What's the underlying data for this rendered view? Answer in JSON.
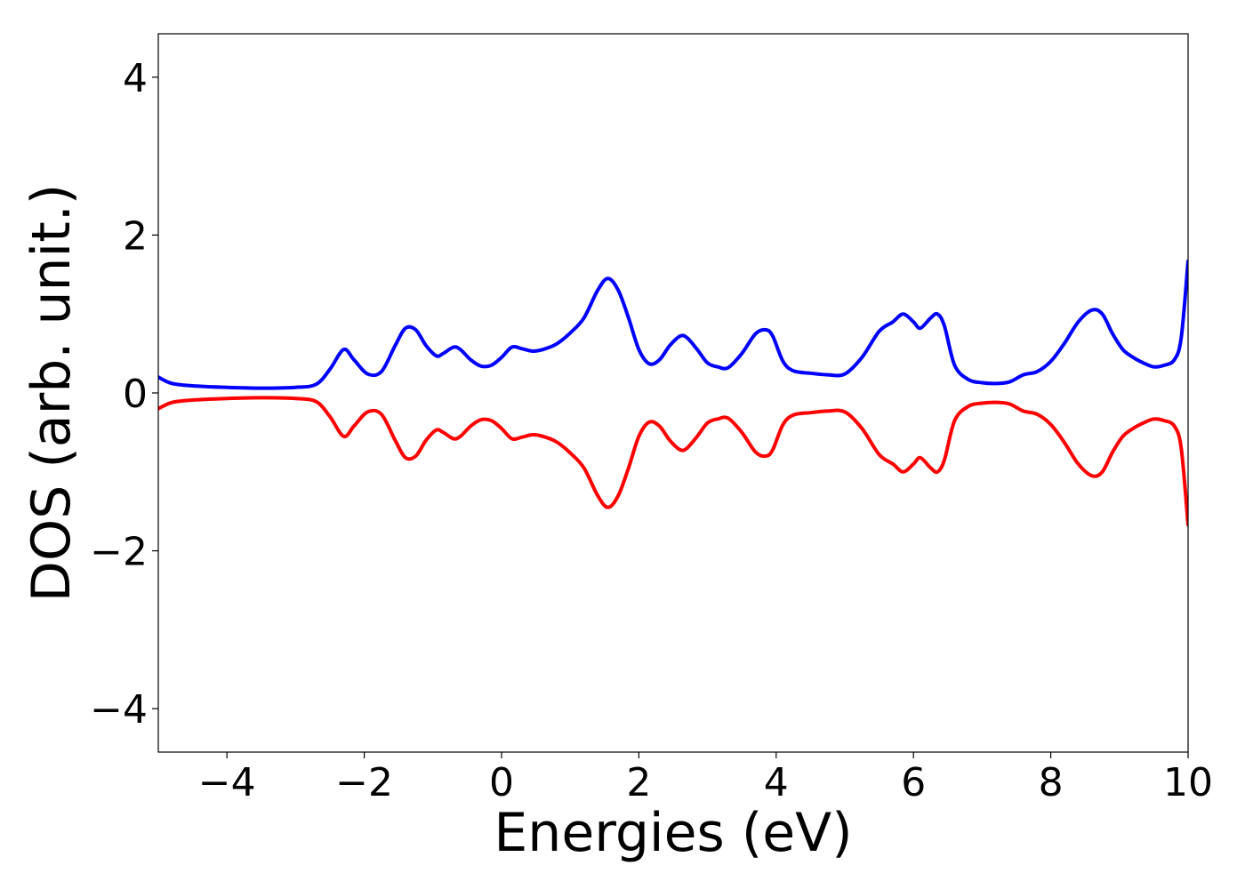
{
  "chart_data": {
    "type": "line",
    "title": "",
    "xlabel": "Energies (eV)",
    "ylabel": "DOS (arb. unit.)",
    "xlim": [
      -5,
      10
    ],
    "ylim": [
      -4.55,
      4.55
    ],
    "xticks": [
      -4,
      -2,
      0,
      2,
      4,
      6,
      8,
      10
    ],
    "yticks": [
      -4,
      -2,
      0,
      2,
      4
    ],
    "xtick_labels": [
      "−4",
      "−2",
      "0",
      "2",
      "4",
      "6",
      "8",
      "10"
    ],
    "ytick_labels": [
      "−4",
      "−2",
      "0",
      "2",
      "4"
    ],
    "grid": false,
    "legend": "none",
    "series": [
      {
        "color": "#0000ff",
        "x": [
          -5.0,
          -4.8,
          -4.5,
          -4.0,
          -3.5,
          -3.0,
          -2.7,
          -2.5,
          -2.3,
          -2.15,
          -1.95,
          -1.75,
          -1.55,
          -1.4,
          -1.25,
          -1.1,
          -0.95,
          -0.85,
          -0.7,
          -0.6,
          -0.45,
          -0.3,
          -0.15,
          0.0,
          0.15,
          0.3,
          0.45,
          0.6,
          0.8,
          1.0,
          1.2,
          1.4,
          1.55,
          1.7,
          1.85,
          2.0,
          2.15,
          2.3,
          2.45,
          2.6,
          2.7,
          2.85,
          3.0,
          3.15,
          3.3,
          3.5,
          3.7,
          3.85,
          3.95,
          4.1,
          4.25,
          4.5,
          4.75,
          5.0,
          5.25,
          5.5,
          5.7,
          5.85,
          6.0,
          6.1,
          6.25,
          6.35,
          6.45,
          6.6,
          6.8,
          7.0,
          7.2,
          7.4,
          7.6,
          7.8,
          8.0,
          8.2,
          8.4,
          8.6,
          8.75,
          8.9,
          9.05,
          9.2,
          9.35,
          9.5,
          9.65,
          9.8,
          9.9,
          10.0
        ],
        "y": [
          0.2,
          0.12,
          0.09,
          0.07,
          0.06,
          0.07,
          0.11,
          0.3,
          0.55,
          0.42,
          0.24,
          0.27,
          0.6,
          0.82,
          0.8,
          0.6,
          0.47,
          0.5,
          0.58,
          0.55,
          0.42,
          0.34,
          0.35,
          0.45,
          0.58,
          0.56,
          0.53,
          0.55,
          0.62,
          0.76,
          0.95,
          1.3,
          1.45,
          1.3,
          0.95,
          0.55,
          0.37,
          0.42,
          0.6,
          0.72,
          0.7,
          0.55,
          0.38,
          0.33,
          0.32,
          0.5,
          0.75,
          0.8,
          0.72,
          0.4,
          0.28,
          0.25,
          0.23,
          0.24,
          0.45,
          0.78,
          0.9,
          1.0,
          0.9,
          0.82,
          0.95,
          1.0,
          0.85,
          0.35,
          0.17,
          0.13,
          0.12,
          0.14,
          0.23,
          0.27,
          0.4,
          0.63,
          0.9,
          1.05,
          1.0,
          0.75,
          0.55,
          0.45,
          0.38,
          0.33,
          0.35,
          0.42,
          0.7,
          1.67
        ]
      },
      {
        "color": "#ff0000",
        "x": [
          -5.0,
          -4.8,
          -4.5,
          -4.0,
          -3.5,
          -3.0,
          -2.7,
          -2.5,
          -2.3,
          -2.15,
          -1.95,
          -1.75,
          -1.55,
          -1.4,
          -1.25,
          -1.1,
          -0.95,
          -0.85,
          -0.7,
          -0.6,
          -0.45,
          -0.3,
          -0.15,
          0.0,
          0.15,
          0.3,
          0.45,
          0.6,
          0.8,
          1.0,
          1.2,
          1.4,
          1.55,
          1.7,
          1.85,
          2.0,
          2.15,
          2.3,
          2.45,
          2.6,
          2.7,
          2.85,
          3.0,
          3.15,
          3.3,
          3.5,
          3.7,
          3.85,
          3.95,
          4.1,
          4.25,
          4.5,
          4.75,
          5.0,
          5.25,
          5.5,
          5.7,
          5.85,
          6.0,
          6.1,
          6.25,
          6.35,
          6.45,
          6.6,
          6.8,
          7.0,
          7.2,
          7.4,
          7.6,
          7.8,
          8.0,
          8.2,
          8.4,
          8.6,
          8.75,
          8.9,
          9.05,
          9.2,
          9.35,
          9.5,
          9.65,
          9.8,
          9.9,
          10.0
        ],
        "y": [
          -0.2,
          -0.12,
          -0.09,
          -0.07,
          -0.06,
          -0.07,
          -0.11,
          -0.3,
          -0.55,
          -0.42,
          -0.24,
          -0.27,
          -0.6,
          -0.82,
          -0.8,
          -0.6,
          -0.47,
          -0.5,
          -0.58,
          -0.55,
          -0.42,
          -0.34,
          -0.35,
          -0.45,
          -0.58,
          -0.56,
          -0.53,
          -0.55,
          -0.62,
          -0.76,
          -0.95,
          -1.3,
          -1.45,
          -1.3,
          -0.95,
          -0.55,
          -0.37,
          -0.42,
          -0.6,
          -0.72,
          -0.7,
          -0.55,
          -0.38,
          -0.33,
          -0.32,
          -0.5,
          -0.75,
          -0.8,
          -0.72,
          -0.4,
          -0.28,
          -0.25,
          -0.23,
          -0.24,
          -0.45,
          -0.78,
          -0.9,
          -1.0,
          -0.9,
          -0.82,
          -0.95,
          -1.0,
          -0.85,
          -0.35,
          -0.17,
          -0.13,
          -0.12,
          -0.14,
          -0.23,
          -0.27,
          -0.4,
          -0.63,
          -0.9,
          -1.05,
          -1.0,
          -0.75,
          -0.55,
          -0.45,
          -0.38,
          -0.33,
          -0.35,
          -0.42,
          -0.7,
          -1.67
        ]
      }
    ]
  }
}
